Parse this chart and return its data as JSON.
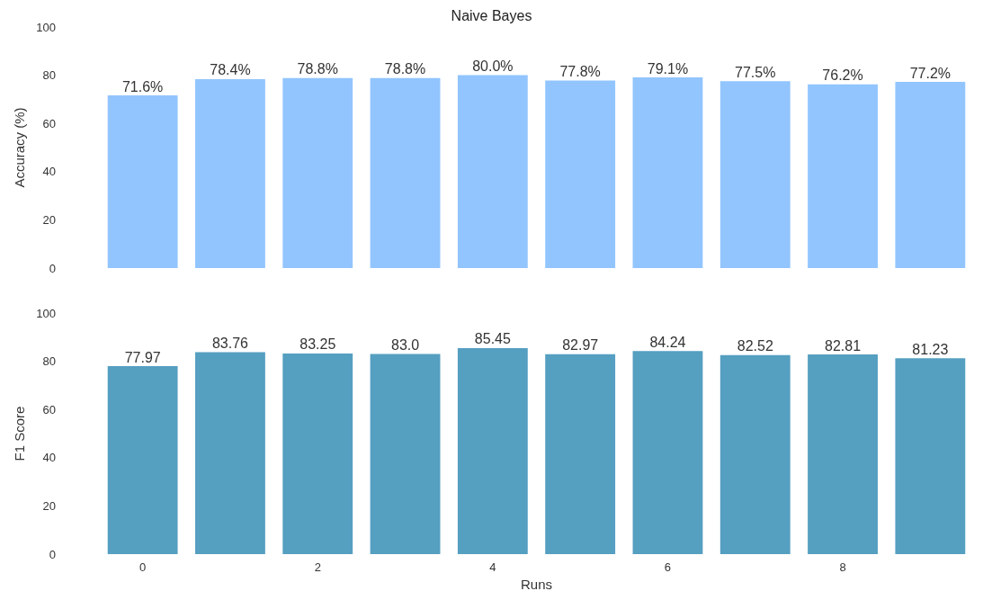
{
  "chart_data": [
    {
      "type": "bar",
      "title": "Naive Bayes",
      "ylabel": "Accuracy (%)",
      "categories": [
        "0",
        null,
        "2",
        null,
        "4",
        null,
        "6",
        null,
        "8",
        null
      ],
      "values": [
        71.6,
        78.4,
        78.8,
        78.8,
        80.0,
        77.8,
        79.1,
        77.5,
        76.2,
        77.2
      ],
      "color": "#92c5fe",
      "value_labels": [
        "71.6%",
        "78.4%",
        "78.8%",
        "78.8%",
        "80.0%",
        "77.8%",
        "79.1%",
        "77.5%",
        "76.2%",
        "77.2%"
      ],
      "ylim": [
        0,
        100
      ],
      "yticks": [
        0,
        20,
        40,
        60,
        80,
        100
      ],
      "tick_labels": "y",
      "grid": false
    },
    {
      "type": "bar",
      "xlabel": "Runs",
      "ylabel": "F1 Score",
      "categories": [
        "0",
        null,
        "2",
        null,
        "4",
        null,
        "6",
        null,
        "8",
        null
      ],
      "values": [
        77.97,
        83.76,
        83.25,
        83.0,
        85.45,
        82.97,
        84.24,
        82.52,
        82.81,
        81.23
      ],
      "color": "#559fc1",
      "value_labels": [
        "77.97",
        "83.76",
        "83.25",
        "83.0",
        "85.45",
        "82.97",
        "84.24",
        "82.52",
        "82.81",
        "81.23"
      ],
      "ylim": [
        0,
        100
      ],
      "yticks": [
        0,
        20,
        40,
        60,
        80,
        100
      ],
      "grid": false
    }
  ]
}
